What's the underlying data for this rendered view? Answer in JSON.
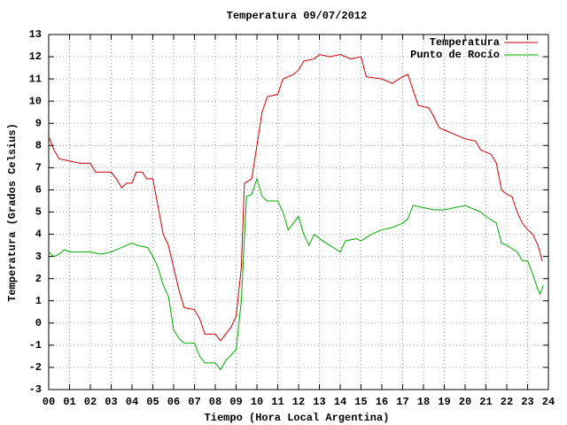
{
  "chart_data": {
    "type": "line",
    "title": "Temperatura 09/07/2012",
    "x_label": "Tiempo (Hora Local Argentina)",
    "y_label": "Temperatura (Grados Celsius)",
    "xlim": [
      0,
      24
    ],
    "ylim": [
      -3,
      13
    ],
    "xticks": [
      {
        "value": 0,
        "label": "00"
      },
      {
        "value": 1,
        "label": "01"
      },
      {
        "value": 2,
        "label": "02"
      },
      {
        "value": 3,
        "label": "03"
      },
      {
        "value": 4,
        "label": "04"
      },
      {
        "value": 5,
        "label": "05"
      },
      {
        "value": 6,
        "label": "06"
      },
      {
        "value": 7,
        "label": "07"
      },
      {
        "value": 8,
        "label": "08"
      },
      {
        "value": 9,
        "label": "09"
      },
      {
        "value": 10,
        "label": "10"
      },
      {
        "value": 11,
        "label": "11"
      },
      {
        "value": 12,
        "label": "12"
      },
      {
        "value": 13,
        "label": "13"
      },
      {
        "value": 14,
        "label": "14"
      },
      {
        "value": 15,
        "label": "15"
      },
      {
        "value": 16,
        "label": "16"
      },
      {
        "value": 17,
        "label": "17"
      },
      {
        "value": 18,
        "label": "18"
      },
      {
        "value": 19,
        "label": "19"
      },
      {
        "value": 20,
        "label": "20"
      },
      {
        "value": 21,
        "label": "21"
      },
      {
        "value": 22,
        "label": "22"
      },
      {
        "value": 23,
        "label": "23"
      },
      {
        "value": 24,
        "label": "24"
      }
    ],
    "yticks": [
      -3,
      -2,
      -1,
      0,
      1,
      2,
      3,
      4,
      5,
      6,
      7,
      8,
      9,
      10,
      11,
      12,
      13
    ],
    "grid": true,
    "legend": "top-right",
    "series": [
      {
        "name": "Temperatura",
        "color": "#cc0000",
        "x": [
          0,
          0.25,
          0.5,
          1,
          1.5,
          2,
          2.25,
          3,
          3.25,
          3.5,
          3.75,
          4,
          4.2,
          4.5,
          4.7,
          5,
          5.2,
          5.5,
          5.75,
          6,
          6.25,
          6.5,
          7,
          7.25,
          7.5,
          8,
          8.25,
          8.5,
          8.75,
          9,
          9.25,
          9.4,
          9.75,
          10,
          10.25,
          10.5,
          11,
          11.25,
          11.75,
          12,
          12.25,
          12.75,
          13,
          13.5,
          14,
          14.5,
          15,
          15.25,
          16,
          16.5,
          17,
          17.25,
          17.5,
          17.75,
          18.25,
          18.5,
          18.75,
          19,
          19.5,
          20,
          20.5,
          20.75,
          21.25,
          21.5,
          21.75,
          22,
          22.25,
          22.5,
          22.75,
          23,
          23.25,
          23.5,
          23.7
        ],
        "values": [
          8.4,
          7.8,
          7.4,
          7.3,
          7.2,
          7.2,
          6.8,
          6.8,
          6.5,
          6.1,
          6.3,
          6.3,
          6.8,
          6.8,
          6.5,
          6.5,
          5.5,
          4.0,
          3.5,
          2.5,
          1.5,
          0.7,
          0.6,
          0.2,
          -0.5,
          -0.5,
          -0.8,
          -0.5,
          -0.2,
          0.3,
          2.5,
          6.3,
          6.5,
          8,
          9.5,
          10.2,
          10.3,
          11,
          11.2,
          11.4,
          11.8,
          11.9,
          12.1,
          12,
          12.1,
          11.9,
          12,
          11.1,
          11,
          10.8,
          11.1,
          11.2,
          10.5,
          9.8,
          9.7,
          9.3,
          8.8,
          8.7,
          8.5,
          8.3,
          8.2,
          7.8,
          7.6,
          7.2,
          6.0,
          5.8,
          5.7,
          5.0,
          4.5,
          4.2,
          4.0,
          3.5,
          2.8
        ]
      },
      {
        "name": "Punto de Rocío",
        "color": "#00aa00",
        "x": [
          0,
          0.25,
          0.5,
          0.75,
          1,
          1.5,
          2,
          2.5,
          3,
          3.5,
          4,
          4.25,
          4.75,
          5,
          5.25,
          5.5,
          5.75,
          6,
          6.25,
          6.5,
          7,
          7.25,
          7.5,
          8,
          8.25,
          8.5,
          9,
          9.25,
          9.5,
          9.75,
          10,
          10.25,
          10.5,
          11,
          11.25,
          11.5,
          12,
          12.25,
          12.5,
          12.75,
          13,
          13.5,
          14,
          14.25,
          14.75,
          15,
          15.5,
          16,
          16.5,
          17,
          17.25,
          17.5,
          18,
          18.5,
          19,
          19.5,
          20,
          20.5,
          20.75,
          21,
          21.5,
          21.75,
          22,
          22.5,
          22.75,
          23,
          23.25,
          23.5,
          23.6,
          23.75
        ],
        "values": [
          3.2,
          3.0,
          3.1,
          3.3,
          3.2,
          3.2,
          3.2,
          3.1,
          3.2,
          3.4,
          3.6,
          3.5,
          3.4,
          3.0,
          2.5,
          1.7,
          1.2,
          -0.3,
          -0.7,
          -0.9,
          -0.9,
          -1.5,
          -1.8,
          -1.8,
          -2.1,
          -1.7,
          -1.2,
          1.0,
          5.7,
          5.8,
          6.5,
          5.7,
          5.5,
          5.5,
          5.0,
          4.2,
          4.8,
          4.0,
          3.5,
          4.0,
          3.8,
          3.5,
          3.2,
          3.7,
          3.8,
          3.7,
          4.0,
          4.2,
          4.3,
          4.5,
          4.7,
          5.3,
          5.2,
          5.1,
          5.1,
          5.2,
          5.3,
          5.1,
          5.0,
          4.8,
          4.5,
          3.6,
          3.5,
          3.2,
          2.8,
          2.8,
          2.2,
          1.5,
          1.3,
          1.7
        ]
      }
    ]
  }
}
